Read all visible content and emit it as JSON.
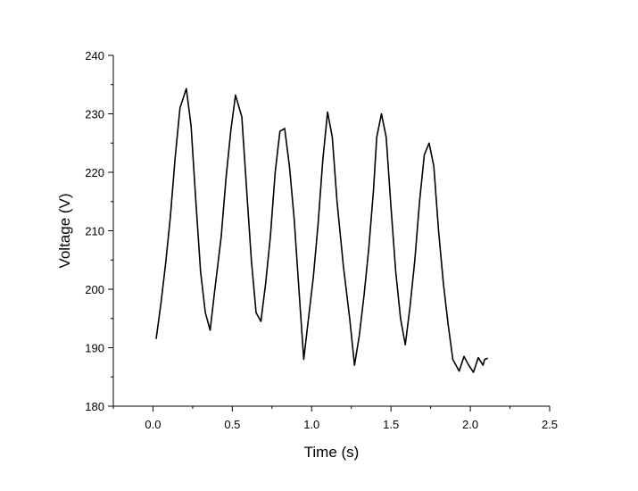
{
  "chart_data": {
    "type": "line",
    "title": "",
    "xlabel": "Time (s)",
    "ylabel": "Voltage (V)",
    "xlim": [
      -0.25,
      2.5
    ],
    "ylim": [
      180,
      240
    ],
    "xticks": [
      0.0,
      0.5,
      1.0,
      1.5,
      2.0,
      2.5
    ],
    "xtick_labels": [
      "0.0",
      "0.5",
      "1.0",
      "1.5",
      "2.0",
      "2.5"
    ],
    "yticks": [
      180,
      190,
      200,
      210,
      220,
      230,
      240
    ],
    "ytick_labels": [
      "180",
      "190",
      "200",
      "210",
      "220",
      "230",
      "240"
    ],
    "grid": false,
    "legend": "none",
    "line_color": "#000000",
    "series": [
      {
        "x": [
          0.02,
          0.05,
          0.08,
          0.11,
          0.14,
          0.17,
          0.21,
          0.24,
          0.27,
          0.3,
          0.33,
          0.36,
          0.39,
          0.43,
          0.46,
          0.49,
          0.52,
          0.56,
          0.59,
          0.62,
          0.65,
          0.68,
          0.71,
          0.74,
          0.77,
          0.8,
          0.83,
          0.86,
          0.89,
          0.92,
          0.95,
          0.98,
          1.01,
          1.04,
          1.07,
          1.1,
          1.13,
          1.16,
          1.2,
          1.24,
          1.27,
          1.3,
          1.33,
          1.36,
          1.39,
          1.41,
          1.44,
          1.47,
          1.5,
          1.53,
          1.56,
          1.59,
          1.62,
          1.65,
          1.68,
          1.71,
          1.74,
          1.77,
          1.8,
          1.83,
          1.86,
          1.89,
          1.93,
          1.96,
          1.99,
          2.02,
          2.05,
          2.08,
          2.09,
          2.11
        ],
        "y": [
          191.5,
          197.5,
          204.5,
          212.5,
          222.5,
          231.0,
          234.3,
          228.0,
          215.0,
          203.0,
          196.0,
          193.0,
          200.0,
          209.0,
          219.0,
          227.0,
          233.2,
          229.5,
          217.0,
          205.0,
          196.0,
          194.5,
          201.0,
          209.0,
          220.0,
          227.0,
          227.5,
          221.0,
          212.0,
          200.0,
          188.0,
          195.0,
          202.0,
          211.0,
          222.0,
          230.3,
          226.0,
          215.0,
          204.0,
          195.0,
          187.0,
          192.0,
          199.0,
          207.0,
          217.0,
          226.0,
          230.0,
          226.0,
          214.0,
          203.0,
          195.0,
          190.5,
          197.0,
          205.0,
          215.0,
          223.0,
          225.0,
          221.0,
          210.0,
          201.0,
          194.0,
          188.0,
          186.0,
          188.5,
          187.0,
          185.8,
          188.3,
          187.0,
          188.0,
          188.2
        ]
      }
    ]
  }
}
